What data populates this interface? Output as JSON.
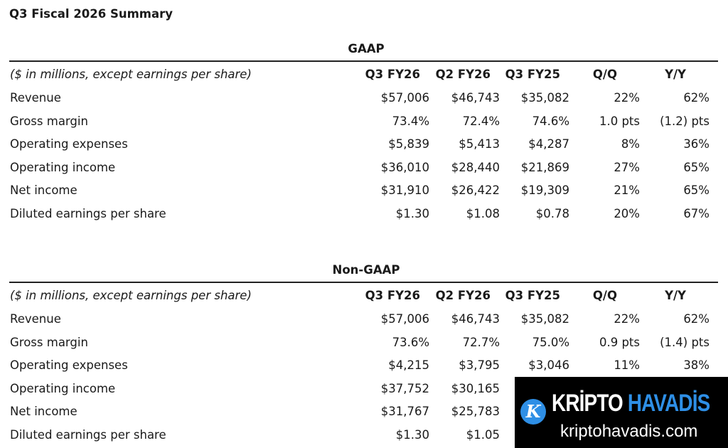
{
  "title": "Q3 Fiscal 2026 Summary",
  "header": {
    "label": "($ in millions, except earnings per share)",
    "cols": [
      "Q3 FY26",
      "Q2 FY26",
      "Q3 FY25",
      "Q/Q",
      "Y/Y"
    ]
  },
  "gaap": {
    "title": "GAAP",
    "rows": [
      {
        "label": "Revenue",
        "v": [
          "$57,006",
          "$46,743",
          "$35,082",
          "22%",
          "62%"
        ]
      },
      {
        "label": "Gross margin",
        "v": [
          "73.4%",
          "72.4%",
          "74.6%",
          "1.0 pts",
          "(1.2) pts"
        ]
      },
      {
        "label": "Operating expenses",
        "v": [
          "$5,839",
          "$5,413",
          "$4,287",
          "8%",
          "36%"
        ]
      },
      {
        "label": "Operating income",
        "v": [
          "$36,010",
          "$28,440",
          "$21,869",
          "27%",
          "65%"
        ]
      },
      {
        "label": "Net income",
        "v": [
          "$31,910",
          "$26,422",
          "$19,309",
          "21%",
          "65%"
        ]
      },
      {
        "label": "Diluted earnings per share",
        "v": [
          "$1.30",
          "$1.08",
          "$0.78",
          "20%",
          "67%"
        ]
      }
    ]
  },
  "nongaap": {
    "title": "Non-GAAP",
    "rows": [
      {
        "label": "Revenue",
        "v": [
          "$57,006",
          "$46,743",
          "$35,082",
          "22%",
          "62%"
        ]
      },
      {
        "label": "Gross margin",
        "v": [
          "73.6%",
          "72.7%",
          "75.0%",
          "0.9 pts",
          "(1.4) pts"
        ]
      },
      {
        "label": "Operating expenses",
        "v": [
          "$4,215",
          "$3,795",
          "$3,046",
          "11%",
          "38%"
        ]
      },
      {
        "label": "Operating income",
        "v": [
          "$37,752",
          "$30,165"
        ]
      },
      {
        "label": "Net income",
        "v": [
          "$31,767",
          "$25,783"
        ]
      },
      {
        "label": "Diluted earnings per share",
        "v": [
          "$1.30",
          "$1.05"
        ]
      }
    ]
  },
  "watermark": {
    "brand_a": "KRİPTO",
    "brand_b": "HAVADİS",
    "url": "kriptohavadis.com",
    "logo_letter": "K",
    "accent": "#2e8fe6"
  }
}
